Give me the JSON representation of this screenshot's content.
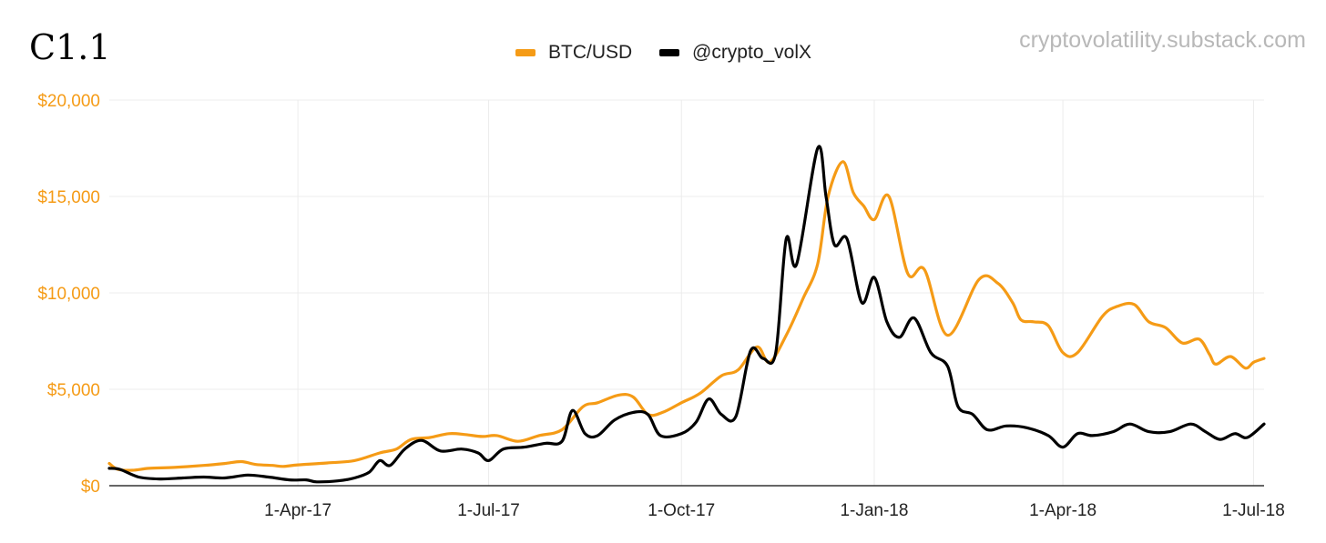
{
  "header": {
    "title": "C1.1",
    "watermark": "cryptovolatility.substack.com"
  },
  "colors": {
    "btc": "#f59b16",
    "vol": "#000000",
    "grid": "#ececec",
    "ytick": "#f59b16"
  },
  "chart_data": {
    "type": "line",
    "title": "C1.1",
    "x_range": [
      "2017-01-01",
      "2018-07-06"
    ],
    "ylim": [
      0,
      20000
    ],
    "y_ticks": [
      0,
      5000,
      10000,
      15000,
      20000
    ],
    "y_tick_labels": [
      "$0",
      "$5,000",
      "$10,000",
      "$15,000",
      "$20,000"
    ],
    "x_ticks": [
      "2017-04-01",
      "2017-07-01",
      "2017-10-01",
      "2018-01-01",
      "2018-04-01",
      "2018-07-01"
    ],
    "x_tick_labels": [
      "1-Apr-17",
      "1-Jul-17",
      "1-Oct-17",
      "1-Jan-18",
      "1-Apr-18",
      "1-Jul-18"
    ],
    "grid": true,
    "legend_position": "top-center",
    "series": [
      {
        "name": "BTC/USD",
        "color": "#f59b16",
        "points": [
          [
            "2017-01-01",
            1150
          ],
          [
            "2017-01-05",
            850
          ],
          [
            "2017-01-12",
            800
          ],
          [
            "2017-01-20",
            900
          ],
          [
            "2017-02-01",
            950
          ],
          [
            "2017-02-15",
            1050
          ],
          [
            "2017-02-25",
            1150
          ],
          [
            "2017-03-05",
            1250
          ],
          [
            "2017-03-12",
            1100
          ],
          [
            "2017-03-20",
            1050
          ],
          [
            "2017-03-25",
            1000
          ],
          [
            "2017-04-01",
            1080
          ],
          [
            "2017-04-15",
            1180
          ],
          [
            "2017-04-28",
            1300
          ],
          [
            "2017-05-10",
            1700
          ],
          [
            "2017-05-18",
            1900
          ],
          [
            "2017-05-25",
            2400
          ],
          [
            "2017-06-03",
            2500
          ],
          [
            "2017-06-12",
            2700
          ],
          [
            "2017-06-20",
            2650
          ],
          [
            "2017-06-28",
            2550
          ],
          [
            "2017-07-05",
            2600
          ],
          [
            "2017-07-15",
            2300
          ],
          [
            "2017-07-25",
            2600
          ],
          [
            "2017-08-05",
            2900
          ],
          [
            "2017-08-15",
            4100
          ],
          [
            "2017-08-22",
            4300
          ],
          [
            "2017-09-01",
            4700
          ],
          [
            "2017-09-08",
            4600
          ],
          [
            "2017-09-15",
            3700
          ],
          [
            "2017-09-22",
            3800
          ],
          [
            "2017-10-01",
            4300
          ],
          [
            "2017-10-10",
            4800
          ],
          [
            "2017-10-20",
            5700
          ],
          [
            "2017-10-28",
            6000
          ],
          [
            "2017-11-06",
            7200
          ],
          [
            "2017-11-12",
            6400
          ],
          [
            "2017-11-20",
            7800
          ],
          [
            "2017-11-28",
            9700
          ],
          [
            "2017-12-05",
            11500
          ],
          [
            "2017-12-10",
            15000
          ],
          [
            "2017-12-17",
            16800
          ],
          [
            "2017-12-22",
            15200
          ],
          [
            "2017-12-27",
            14500
          ],
          [
            "2018-01-01",
            13800
          ],
          [
            "2018-01-08",
            15000
          ],
          [
            "2018-01-17",
            11000
          ],
          [
            "2018-01-25",
            11200
          ],
          [
            "2018-02-05",
            7800
          ],
          [
            "2018-02-20",
            10700
          ],
          [
            "2018-03-01",
            10500
          ],
          [
            "2018-03-08",
            9500
          ],
          [
            "2018-03-12",
            8600
          ],
          [
            "2018-03-18",
            8500
          ],
          [
            "2018-03-25",
            8300
          ],
          [
            "2018-04-01",
            6900
          ],
          [
            "2018-04-08",
            6900
          ],
          [
            "2018-04-20",
            8800
          ],
          [
            "2018-04-27",
            9300
          ],
          [
            "2018-05-05",
            9400
          ],
          [
            "2018-05-12",
            8500
          ],
          [
            "2018-05-20",
            8200
          ],
          [
            "2018-05-28",
            7400
          ],
          [
            "2018-06-05",
            7600
          ],
          [
            "2018-06-10",
            6800
          ],
          [
            "2018-06-13",
            6300
          ],
          [
            "2018-06-20",
            6700
          ],
          [
            "2018-06-27",
            6100
          ],
          [
            "2018-07-01",
            6400
          ],
          [
            "2018-07-06",
            6600
          ]
        ]
      },
      {
        "name": "@crypto_volX",
        "color": "#000000",
        "points": [
          [
            "2017-01-01",
            900
          ],
          [
            "2017-01-06",
            850
          ],
          [
            "2017-01-15",
            450
          ],
          [
            "2017-01-25",
            350
          ],
          [
            "2017-02-05",
            400
          ],
          [
            "2017-02-15",
            450
          ],
          [
            "2017-02-25",
            400
          ],
          [
            "2017-03-08",
            550
          ],
          [
            "2017-03-18",
            450
          ],
          [
            "2017-03-28",
            300
          ],
          [
            "2017-04-05",
            300
          ],
          [
            "2017-04-10",
            200
          ],
          [
            "2017-04-20",
            250
          ],
          [
            "2017-04-28",
            400
          ],
          [
            "2017-05-05",
            700
          ],
          [
            "2017-05-10",
            1300
          ],
          [
            "2017-05-15",
            1050
          ],
          [
            "2017-05-22",
            1900
          ],
          [
            "2017-05-30",
            2350
          ],
          [
            "2017-06-08",
            1800
          ],
          [
            "2017-06-18",
            1900
          ],
          [
            "2017-06-26",
            1700
          ],
          [
            "2017-07-01",
            1300
          ],
          [
            "2017-07-08",
            1900
          ],
          [
            "2017-07-18",
            2000
          ],
          [
            "2017-07-28",
            2200
          ],
          [
            "2017-08-05",
            2300
          ],
          [
            "2017-08-10",
            3900
          ],
          [
            "2017-08-16",
            2700
          ],
          [
            "2017-08-22",
            2600
          ],
          [
            "2017-08-30",
            3400
          ],
          [
            "2017-09-08",
            3800
          ],
          [
            "2017-09-15",
            3700
          ],
          [
            "2017-09-21",
            2600
          ],
          [
            "2017-10-01",
            2700
          ],
          [
            "2017-10-08",
            3300
          ],
          [
            "2017-10-14",
            4500
          ],
          [
            "2017-10-20",
            3700
          ],
          [
            "2017-10-27",
            3600
          ],
          [
            "2017-11-03",
            7000
          ],
          [
            "2017-11-09",
            6600
          ],
          [
            "2017-11-15",
            6900
          ],
          [
            "2017-11-20",
            12800
          ],
          [
            "2017-11-25",
            11500
          ],
          [
            "2017-12-05",
            17500
          ],
          [
            "2017-12-09",
            15000
          ],
          [
            "2017-12-13",
            12500
          ],
          [
            "2017-12-19",
            12800
          ],
          [
            "2017-12-26",
            9500
          ],
          [
            "2018-01-01",
            10800
          ],
          [
            "2018-01-07",
            8500
          ],
          [
            "2018-01-13",
            7700
          ],
          [
            "2018-01-20",
            8700
          ],
          [
            "2018-01-28",
            6900
          ],
          [
            "2018-02-05",
            6200
          ],
          [
            "2018-02-10",
            4100
          ],
          [
            "2018-02-17",
            3700
          ],
          [
            "2018-02-24",
            2900
          ],
          [
            "2018-03-05",
            3100
          ],
          [
            "2018-03-15",
            3000
          ],
          [
            "2018-03-25",
            2600
          ],
          [
            "2018-04-01",
            2000
          ],
          [
            "2018-04-08",
            2700
          ],
          [
            "2018-04-15",
            2600
          ],
          [
            "2018-04-25",
            2800
          ],
          [
            "2018-05-03",
            3200
          ],
          [
            "2018-05-12",
            2800
          ],
          [
            "2018-05-22",
            2800
          ],
          [
            "2018-06-01",
            3200
          ],
          [
            "2018-06-08",
            2800
          ],
          [
            "2018-06-15",
            2400
          ],
          [
            "2018-06-22",
            2700
          ],
          [
            "2018-06-28",
            2500
          ],
          [
            "2018-07-06",
            3200
          ]
        ]
      }
    ]
  }
}
